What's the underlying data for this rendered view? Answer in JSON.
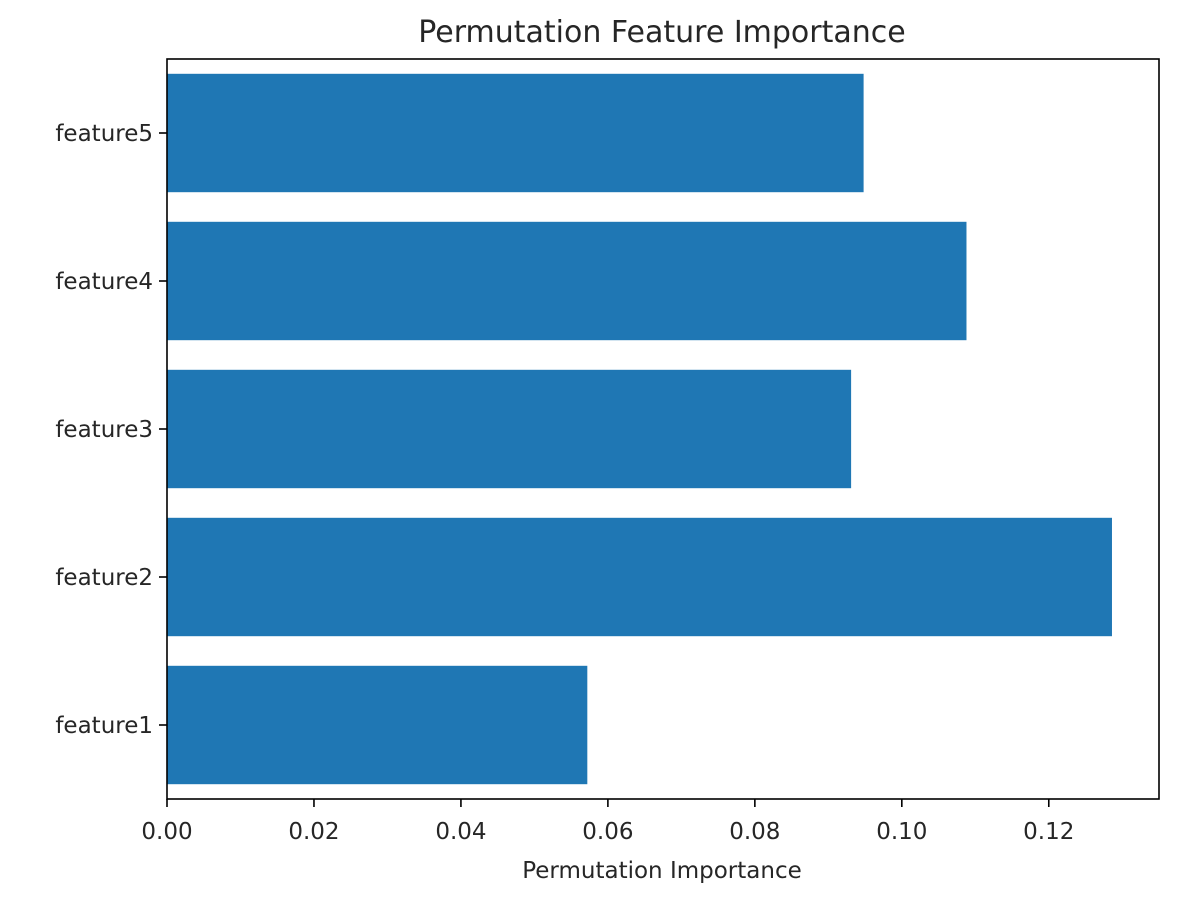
{
  "chart_data": {
    "type": "bar",
    "orientation": "horizontal",
    "title": "Permutation Feature Importance",
    "xlabel": "Permutation Importance",
    "ylabel": "",
    "categories": [
      "feature1",
      "feature2",
      "feature3",
      "feature4",
      "feature5"
    ],
    "values": [
      0.0572,
      0.1286,
      0.0931,
      0.1088,
      0.0948
    ],
    "xlim": [
      0,
      0.135
    ],
    "xticks": [
      0.0,
      0.02,
      0.04,
      0.06,
      0.08,
      0.1,
      0.12
    ],
    "xtick_labels": [
      "0.00",
      "0.02",
      "0.04",
      "0.06",
      "0.08",
      "0.10",
      "0.12"
    ],
    "bar_color": "#1f77b4",
    "grid": false,
    "legend": "none"
  }
}
